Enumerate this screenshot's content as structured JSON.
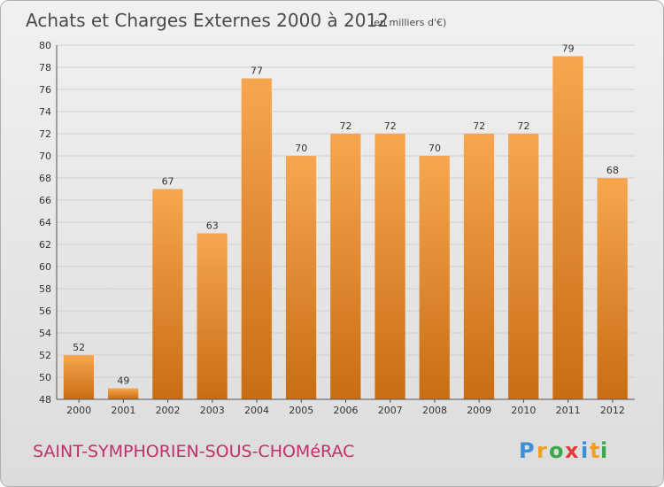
{
  "header": {
    "title": "Achats et Charges Externes 2000 à 2012",
    "unit_note": "(en milliers d'€)"
  },
  "footer": {
    "commune": "SAINT-SYMPHORIEN-SOUS-CHOMéRAC",
    "logo": {
      "letters": [
        "P",
        "r",
        "o",
        "x",
        "i",
        "t",
        "i"
      ],
      "colors": [
        "#3a8fd6",
        "#f29f28",
        "#3aa84a",
        "#e23b3b",
        "#3a8fd6",
        "#f29f28",
        "#3aa84a"
      ]
    }
  },
  "colors": {
    "bar_light": "#f7a650",
    "bar_dark": "#c86d14",
    "grid": "#cfcfcf",
    "axis": "#555555"
  },
  "chart_data": {
    "type": "bar",
    "categories": [
      "2000",
      "2001",
      "2002",
      "2003",
      "2004",
      "2005",
      "2006",
      "2007",
      "2008",
      "2009",
      "2010",
      "2011",
      "2012"
    ],
    "values": [
      52,
      49,
      67,
      63,
      77,
      70,
      72,
      72,
      70,
      72,
      72,
      79,
      68
    ],
    "ylim": [
      48,
      80
    ],
    "yticks": [
      48,
      50,
      52,
      54,
      56,
      58,
      60,
      62,
      64,
      66,
      68,
      70,
      72,
      74,
      76,
      78,
      80
    ],
    "grid": true
  }
}
